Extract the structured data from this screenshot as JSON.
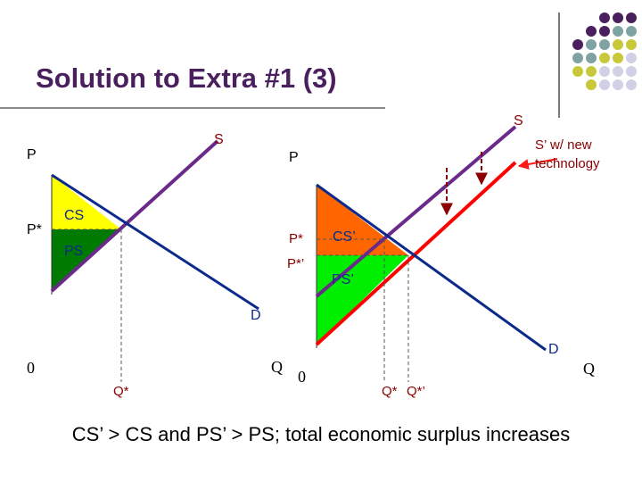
{
  "title": "Solution to Extra #1 (3)",
  "theme": {
    "purple": "#4a1f5e",
    "teal": "#7fa3a3",
    "olive": "#c8c83a",
    "lavender": "#d0d0e6"
  },
  "decoration": {
    "dot_pattern": [
      [
        "purple",
        "purple",
        "purple"
      ],
      [
        "purple",
        "purple",
        "teal",
        "teal"
      ],
      [
        "purple",
        "teal",
        "teal",
        "olive",
        "olive"
      ],
      [
        "teal",
        "teal",
        "olive",
        "olive",
        "lavender"
      ],
      [
        "olive",
        "olive",
        "lavender",
        "lavender",
        "lavender"
      ],
      [
        "olive",
        "lavender",
        "lavender",
        "lavender"
      ]
    ]
  },
  "left_graph": {
    "p_axis": "P",
    "q_axis": "Q",
    "origin": "0",
    "p_star": "P*",
    "q_star": "Q*",
    "supply_label": "S",
    "demand_label": "D",
    "cs_label": "CS",
    "ps_label": "PS"
  },
  "right_graph": {
    "p_axis": "P",
    "q_axis": "Q",
    "origin": "0",
    "p_star": "P*",
    "p_star_new": "P*’",
    "q_star": "Q*",
    "q_star_new": "Q*’",
    "supply_label": "S",
    "supply_new_label_1": "S’ w/ new",
    "supply_new_label_2": "technology",
    "demand_label": "D",
    "cs_label": "CS’",
    "ps_label": "PS’"
  },
  "caption": "CS’ > CS and PS’ > PS; total economic surplus increases"
}
